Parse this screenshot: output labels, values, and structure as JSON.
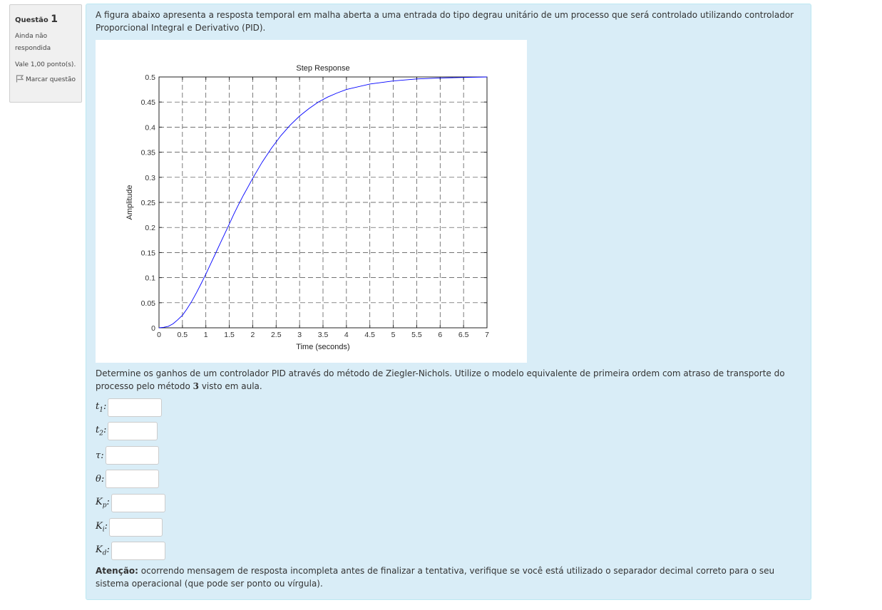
{
  "info": {
    "question_label": "Questão",
    "question_number": "1",
    "state": "Ainda não respondida",
    "grade": "Vale 1,00 ponto(s).",
    "flag_label": "Marcar questão"
  },
  "question": {
    "intro": "A figura abaixo apresenta a resposta temporal em malha aberta a uma entrada do tipo degrau unitário de um processo que será controlado utilizando controlador Proporcional Integral e Derivativo (PID).",
    "instruction_before": "Determine os ganhos de um controlador PID através do método de Ziegler-Nichols. Utilize o modelo equivalente de primeira ordem com atraso de transporte do processo pelo método ",
    "method_number": "3",
    "instruction_after": " visto em aula.",
    "fields": [
      {
        "symbol": "t",
        "sub": "1",
        "value": ""
      },
      {
        "symbol": "t",
        "sub": "2",
        "value": ""
      },
      {
        "symbol": "τ",
        "sub": "",
        "value": ""
      },
      {
        "symbol": "θ",
        "sub": "",
        "value": ""
      },
      {
        "symbol": "K",
        "sub": "p",
        "value": ""
      },
      {
        "symbol": "K",
        "sub": "i",
        "value": ""
      },
      {
        "symbol": "K",
        "sub": "d",
        "value": ""
      }
    ],
    "note_bold": "Atenção:",
    "note_text": " ocorrendo mensagem de resposta incompleta antes de finalizar a tentativa, verifique se você está utilizado o separador decimal correto para o seu sistema operacional (que pode ser ponto ou vírgula)."
  },
  "chart_data": {
    "type": "line",
    "title": "Step Response",
    "xlabel": "Time (seconds)",
    "ylabel": "Amplitude",
    "xlim": [
      0,
      7
    ],
    "ylim": [
      0,
      0.5
    ],
    "xticks": [
      "0",
      "0.5",
      "1",
      "1.5",
      "2",
      "2.5",
      "3",
      "3.5",
      "4",
      "4.5",
      "5",
      "5.5",
      "6",
      "6.5",
      "7"
    ],
    "yticks": [
      "0",
      "0.05",
      "0.1",
      "0.15",
      "0.2",
      "0.25",
      "0.3",
      "0.35",
      "0.4",
      "0.45",
      "0.5"
    ],
    "grid": true,
    "line_color": "#0000ff",
    "series": [
      {
        "x": [
          0,
          0.1,
          0.2,
          0.3,
          0.4,
          0.5,
          0.6,
          0.7,
          0.8,
          0.9,
          1.0,
          1.1,
          1.2,
          1.3,
          1.4,
          1.5,
          1.6,
          1.7,
          1.8,
          1.9,
          2.0,
          2.2,
          2.4,
          2.6,
          2.8,
          3.0,
          3.2,
          3.4,
          3.6,
          3.8,
          4.0,
          4.5,
          5.0,
          5.5,
          6.0,
          6.5,
          7.0
        ],
        "y": [
          0,
          0.001,
          0.003,
          0.008,
          0.016,
          0.025,
          0.038,
          0.053,
          0.07,
          0.088,
          0.107,
          0.127,
          0.147,
          0.167,
          0.187,
          0.207,
          0.227,
          0.246,
          0.264,
          0.281,
          0.298,
          0.33,
          0.358,
          0.383,
          0.404,
          0.422,
          0.437,
          0.45,
          0.46,
          0.468,
          0.475,
          0.486,
          0.492,
          0.496,
          0.498,
          0.499,
          0.5
        ]
      }
    ]
  }
}
